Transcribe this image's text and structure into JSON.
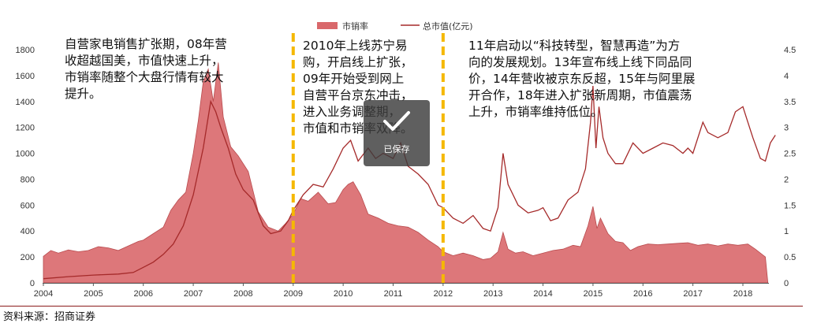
{
  "chart_data": {
    "type": "area+line",
    "legend": {
      "placement": "top-center"
    },
    "x_ticks": [
      "2004",
      "2005",
      "2006",
      "2007",
      "2008",
      "2009",
      "2010",
      "2011",
      "2012",
      "2013",
      "2014",
      "2015",
      "2016",
      "2017",
      "2018"
    ],
    "ylim_left": [
      0,
      1800
    ],
    "y_ticks_left": [
      "0",
      "200",
      "400",
      "600",
      "800",
      "1000",
      "1200",
      "1400",
      "1600",
      "1800"
    ],
    "ylim_right": [
      0,
      4.5
    ],
    "y_ticks_right": [
      "0",
      "0.5",
      "1",
      "1.5",
      "2",
      "2.5",
      "3",
      "3.5",
      "4",
      "4.5"
    ],
    "grid": false,
    "series": [
      {
        "name": "市销率",
        "kind": "area",
        "axis": "left",
        "color": "#d9686b",
        "points": [
          [
            2004.0,
            205
          ],
          [
            2004.15,
            250
          ],
          [
            2004.3,
            230
          ],
          [
            2004.5,
            255
          ],
          [
            2004.7,
            240
          ],
          [
            2004.9,
            250
          ],
          [
            2005.1,
            280
          ],
          [
            2005.3,
            270
          ],
          [
            2005.5,
            250
          ],
          [
            2005.7,
            285
          ],
          [
            2005.9,
            320
          ],
          [
            2006.0,
            330
          ],
          [
            2006.2,
            380
          ],
          [
            2006.4,
            430
          ],
          [
            2006.55,
            560
          ],
          [
            2006.7,
            640
          ],
          [
            2006.85,
            700
          ],
          [
            2007.0,
            1000
          ],
          [
            2007.1,
            1250
          ],
          [
            2007.2,
            1550
          ],
          [
            2007.3,
            1650
          ],
          [
            2007.4,
            1400
          ],
          [
            2007.5,
            1700
          ],
          [
            2007.6,
            1280
          ],
          [
            2007.75,
            1050
          ],
          [
            2007.9,
            980
          ],
          [
            2008.1,
            860
          ],
          [
            2008.3,
            550
          ],
          [
            2008.5,
            430
          ],
          [
            2008.7,
            400
          ],
          [
            2008.85,
            460
          ],
          [
            2009.0,
            530
          ],
          [
            2009.15,
            650
          ],
          [
            2009.3,
            630
          ],
          [
            2009.5,
            700
          ],
          [
            2009.7,
            610
          ],
          [
            2009.85,
            620
          ],
          [
            2010.0,
            720
          ],
          [
            2010.1,
            760
          ],
          [
            2010.2,
            780
          ],
          [
            2010.35,
            680
          ],
          [
            2010.5,
            530
          ],
          [
            2010.7,
            500
          ],
          [
            2010.9,
            460
          ],
          [
            2011.1,
            440
          ],
          [
            2011.3,
            430
          ],
          [
            2011.5,
            390
          ],
          [
            2011.7,
            330
          ],
          [
            2011.9,
            280
          ],
          [
            2012.0,
            240
          ],
          [
            2012.2,
            210
          ],
          [
            2012.4,
            230
          ],
          [
            2012.6,
            210
          ],
          [
            2012.8,
            180
          ],
          [
            2012.95,
            190
          ],
          [
            2013.1,
            240
          ],
          [
            2013.2,
            390
          ],
          [
            2013.3,
            260
          ],
          [
            2013.45,
            230
          ],
          [
            2013.6,
            240
          ],
          [
            2013.8,
            210
          ],
          [
            2014.0,
            230
          ],
          [
            2014.2,
            250
          ],
          [
            2014.4,
            260
          ],
          [
            2014.6,
            290
          ],
          [
            2014.75,
            280
          ],
          [
            2014.9,
            440
          ],
          [
            2015.0,
            590
          ],
          [
            2015.08,
            420
          ],
          [
            2015.15,
            500
          ],
          [
            2015.3,
            380
          ],
          [
            2015.45,
            320
          ],
          [
            2015.6,
            310
          ],
          [
            2015.75,
            250
          ],
          [
            2015.9,
            280
          ],
          [
            2016.1,
            300
          ],
          [
            2016.3,
            295
          ],
          [
            2016.5,
            300
          ],
          [
            2016.7,
            305
          ],
          [
            2016.9,
            310
          ],
          [
            2017.1,
            290
          ],
          [
            2017.3,
            300
          ],
          [
            2017.5,
            285
          ],
          [
            2017.7,
            300
          ],
          [
            2017.9,
            290
          ],
          [
            2018.1,
            300
          ],
          [
            2018.25,
            260
          ],
          [
            2018.35,
            230
          ],
          [
            2018.45,
            200
          ],
          [
            2018.5,
            0
          ]
        ]
      },
      {
        "name": "总市值(亿元)",
        "kind": "line",
        "axis": "right",
        "color": "#a52a2a",
        "points": [
          [
            2004.0,
            0.08
          ],
          [
            2004.5,
            0.12
          ],
          [
            2005.0,
            0.15
          ],
          [
            2005.5,
            0.17
          ],
          [
            2005.8,
            0.2
          ],
          [
            2006.0,
            0.3
          ],
          [
            2006.2,
            0.4
          ],
          [
            2006.4,
            0.55
          ],
          [
            2006.6,
            0.75
          ],
          [
            2006.8,
            1.1
          ],
          [
            2007.0,
            1.7
          ],
          [
            2007.2,
            2.6
          ],
          [
            2007.35,
            3.5
          ],
          [
            2007.45,
            3.3
          ],
          [
            2007.55,
            3.0
          ],
          [
            2007.7,
            2.6
          ],
          [
            2007.85,
            2.1
          ],
          [
            2008.0,
            1.8
          ],
          [
            2008.2,
            1.6
          ],
          [
            2008.4,
            1.1
          ],
          [
            2008.55,
            0.95
          ],
          [
            2008.75,
            1.0
          ],
          [
            2008.9,
            1.2
          ],
          [
            2009.0,
            1.4
          ],
          [
            2009.2,
            1.7
          ],
          [
            2009.4,
            1.9
          ],
          [
            2009.6,
            1.85
          ],
          [
            2009.8,
            2.2
          ],
          [
            2010.0,
            2.6
          ],
          [
            2010.15,
            2.75
          ],
          [
            2010.3,
            2.35
          ],
          [
            2010.5,
            2.6
          ],
          [
            2010.65,
            2.4
          ],
          [
            2010.8,
            2.5
          ],
          [
            2011.0,
            2.4
          ],
          [
            2011.15,
            2.7
          ],
          [
            2011.3,
            2.25
          ],
          [
            2011.5,
            2.1
          ],
          [
            2011.7,
            1.9
          ],
          [
            2011.9,
            1.5
          ],
          [
            2012.0,
            1.45
          ],
          [
            2012.2,
            1.25
          ],
          [
            2012.4,
            1.15
          ],
          [
            2012.6,
            1.3
          ],
          [
            2012.8,
            1.05
          ],
          [
            2012.95,
            1.0
          ],
          [
            2013.1,
            1.45
          ],
          [
            2013.2,
            2.5
          ],
          [
            2013.3,
            1.9
          ],
          [
            2013.5,
            1.5
          ],
          [
            2013.7,
            1.35
          ],
          [
            2013.9,
            1.4
          ],
          [
            2014.0,
            1.45
          ],
          [
            2014.15,
            1.2
          ],
          [
            2014.3,
            1.25
          ],
          [
            2014.5,
            1.6
          ],
          [
            2014.7,
            1.75
          ],
          [
            2014.85,
            2.2
          ],
          [
            2014.95,
            3.1
          ],
          [
            2015.0,
            3.8
          ],
          [
            2015.06,
            2.6
          ],
          [
            2015.12,
            3.4
          ],
          [
            2015.2,
            2.8
          ],
          [
            2015.3,
            2.5
          ],
          [
            2015.45,
            2.3
          ],
          [
            2015.6,
            2.3
          ],
          [
            2015.8,
            2.7
          ],
          [
            2016.0,
            2.5
          ],
          [
            2016.2,
            2.6
          ],
          [
            2016.4,
            2.7
          ],
          [
            2016.6,
            2.65
          ],
          [
            2016.8,
            2.5
          ],
          [
            2016.9,
            2.6
          ],
          [
            2017.0,
            2.5
          ],
          [
            2017.2,
            3.1
          ],
          [
            2017.3,
            2.9
          ],
          [
            2017.5,
            2.8
          ],
          [
            2017.7,
            2.9
          ],
          [
            2017.85,
            3.3
          ],
          [
            2018.0,
            3.4
          ],
          [
            2018.1,
            3.1
          ],
          [
            2018.2,
            2.8
          ],
          [
            2018.35,
            2.4
          ],
          [
            2018.45,
            2.35
          ],
          [
            2018.55,
            2.7
          ],
          [
            2018.65,
            2.85
          ]
        ]
      }
    ],
    "markers": [
      {
        "name": "marker-2009",
        "x": 2009.0,
        "color": "#f5b800"
      },
      {
        "name": "marker-2012",
        "x": 2012.0,
        "color": "#f5b800"
      }
    ],
    "annotations": [
      "自营家电销售扩张期，08年营\n收超越国美，市值快速上升，\n市销率随整个大盘行情有较大\n提升。",
      "2010年上线苏宁易\n购，开启线上扩张，\n09年开始受到网上\n自营平台京东冲击，\n进入业务调整期，\n市值和市销率双降。",
      "11年启动以“科技转型，智慧再造”为方\n向的发展规划。13年宣布线上线下同品同\n价，14年营收被京东反超，15年与阿里展\n开合作，18年进入扩张新周期，市值震荡\n上升，市销率维持低位。"
    ]
  },
  "toast": {
    "label": "已保存"
  },
  "source": "资料来源：招商证券"
}
